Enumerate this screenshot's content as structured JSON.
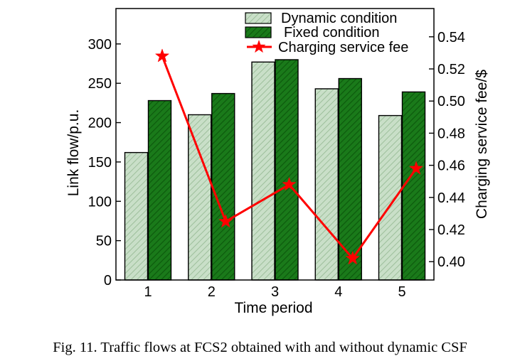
{
  "chart_data": {
    "type": "bar",
    "categories": [
      "1",
      "2",
      "3",
      "4",
      "5"
    ],
    "series": [
      {
        "name": "Dynamic condition",
        "values": [
          162,
          210,
          277,
          243,
          209
        ],
        "color": "#c9dfc8",
        "kind": "bar",
        "axis": "left"
      },
      {
        "name": "Fixed condition",
        "values": [
          228,
          237,
          280,
          256,
          239
        ],
        "color": "#1a7a1a",
        "kind": "bar",
        "axis": "left"
      },
      {
        "name": "Charging service fee",
        "values": [
          0.528,
          0.425,
          0.448,
          0.402,
          0.458
        ],
        "color": "#ff0000",
        "kind": "line",
        "marker": "star",
        "axis": "right"
      }
    ],
    "xlabel": "Time period",
    "ylabel": "Link flow/p.u.",
    "y2label": "Charging service fee/$",
    "ylim": [
      0,
      345
    ],
    "y2lim": [
      0.3886,
      0.5576
    ],
    "yticks": [
      0,
      50,
      100,
      150,
      200,
      250,
      300
    ],
    "y2ticks": [
      "0.40",
      "0.42",
      "0.44",
      "0.46",
      "0.48",
      "0.50",
      "0.52",
      "0.54"
    ],
    "legend": "top-right",
    "grid": false
  },
  "caption": "Fig. 11.  Traffic flows at FCS2 obtained with and without dynamic CSF"
}
